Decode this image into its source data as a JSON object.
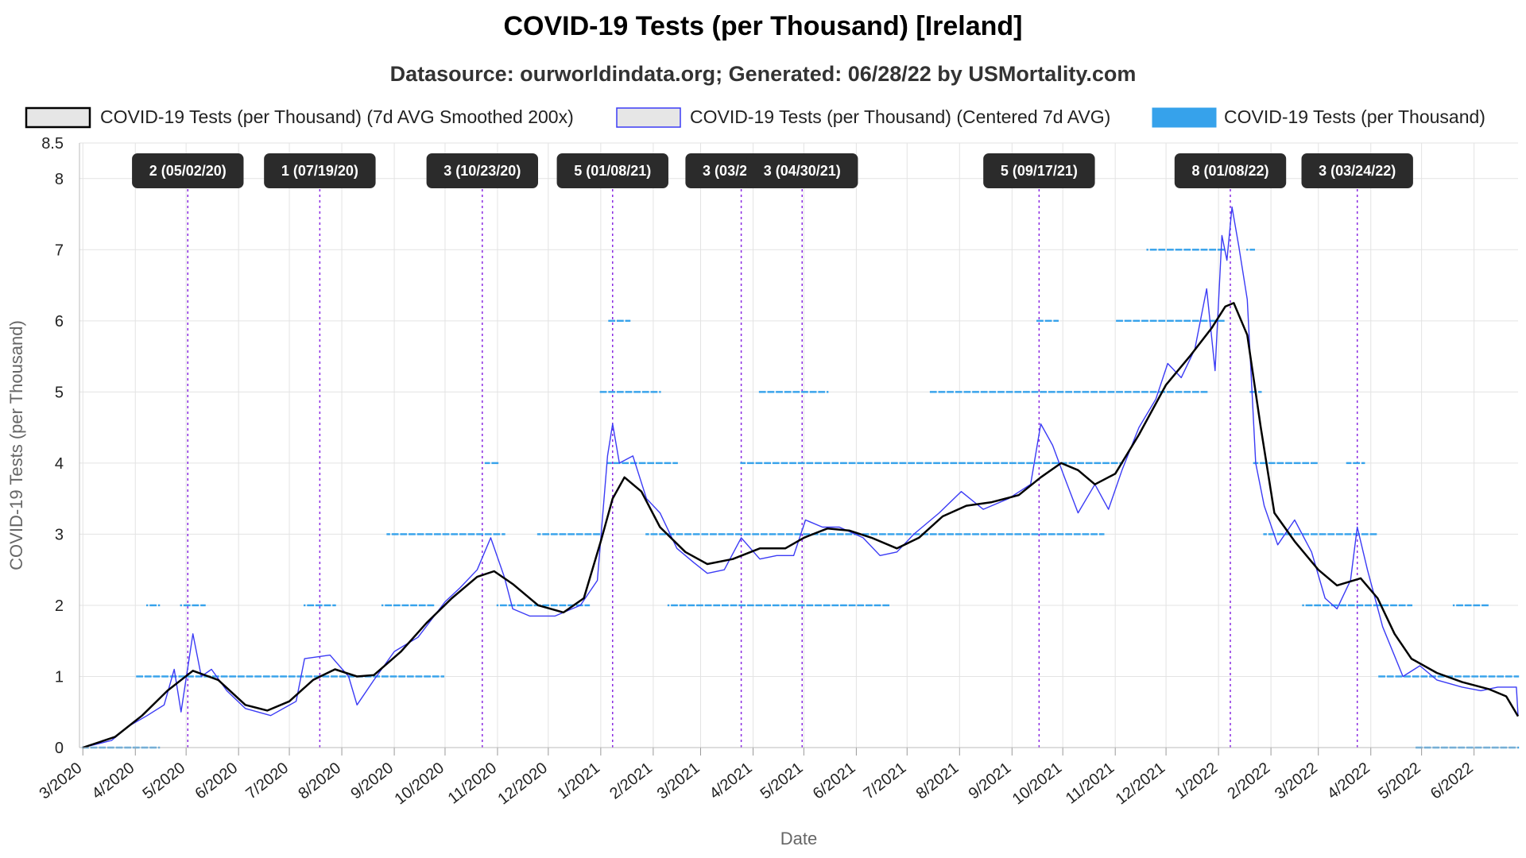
{
  "title": "COVID-19 Tests (per Thousand) [Ireland]",
  "subtitle": "Datasource: ourworldindata.org; Generated: 06/28/22 by USMortality.com",
  "colors": {
    "smoothed_line": "#000000",
    "centered_line": "#3b3bf5",
    "daily_points": "#36a2eb",
    "annotation_line": "#8a2be2",
    "annotation_bg": "#2b2b2b"
  },
  "chart_data": {
    "type": "line",
    "xlabel": "Date",
    "ylabel": "COVID-19 Tests (per Thousand)",
    "ylim": [
      0,
      8.5
    ],
    "yticks": [
      0,
      1,
      2,
      3,
      4,
      5,
      6,
      7,
      8,
      8.5
    ],
    "xlim": [
      "2020-02-28",
      "2022-06-27"
    ],
    "x_tick_labels": [
      "3/2020",
      "4/2020",
      "5/2020",
      "6/2020",
      "7/2020",
      "8/2020",
      "9/2020",
      "10/2020",
      "11/2020",
      "12/2020",
      "1/2021",
      "2/2021",
      "3/2021",
      "4/2021",
      "5/2021",
      "6/2021",
      "7/2021",
      "8/2021",
      "9/2021",
      "10/2021",
      "11/2021",
      "12/2021",
      "1/2022",
      "2/2022",
      "3/2022",
      "4/2022",
      "5/2022",
      "6/2022"
    ],
    "grid": true,
    "legend_position": "top",
    "legend": [
      "COVID-19 Tests (per Thousand) (7d AVG Smoothed 200x)",
      "COVID-19 Tests (per Thousand) (Centered 7d AVG)",
      "COVID-19 Tests (per Thousand)"
    ],
    "series": [
      {
        "name": "COVID-19 Tests (per Thousand) (7d AVG Smoothed 200x)",
        "style": "line",
        "points": [
          [
            "2020-03-01",
            0.0
          ],
          [
            "2020-03-20",
            0.15
          ],
          [
            "2020-04-05",
            0.45
          ],
          [
            "2020-04-20",
            0.8
          ],
          [
            "2020-05-05",
            1.08
          ],
          [
            "2020-05-20",
            0.95
          ],
          [
            "2020-06-05",
            0.6
          ],
          [
            "2020-06-18",
            0.52
          ],
          [
            "2020-07-01",
            0.65
          ],
          [
            "2020-07-15",
            0.95
          ],
          [
            "2020-07-28",
            1.1
          ],
          [
            "2020-08-10",
            1.0
          ],
          [
            "2020-08-20",
            1.02
          ],
          [
            "2020-09-05",
            1.35
          ],
          [
            "2020-09-20",
            1.75
          ],
          [
            "2020-10-05",
            2.1
          ],
          [
            "2020-10-20",
            2.4
          ],
          [
            "2020-10-30",
            2.48
          ],
          [
            "2020-11-10",
            2.3
          ],
          [
            "2020-11-25",
            2.0
          ],
          [
            "2020-12-10",
            1.9
          ],
          [
            "2020-12-22",
            2.1
          ],
          [
            "2021-01-01",
            2.9
          ],
          [
            "2021-01-08",
            3.5
          ],
          [
            "2021-01-15",
            3.8
          ],
          [
            "2021-01-25",
            3.6
          ],
          [
            "2021-02-05",
            3.1
          ],
          [
            "2021-02-20",
            2.75
          ],
          [
            "2021-03-05",
            2.58
          ],
          [
            "2021-03-20",
            2.65
          ],
          [
            "2021-04-05",
            2.8
          ],
          [
            "2021-04-20",
            2.8
          ],
          [
            "2021-05-01",
            2.95
          ],
          [
            "2021-05-15",
            3.08
          ],
          [
            "2021-05-28",
            3.05
          ],
          [
            "2021-06-10",
            2.95
          ],
          [
            "2021-06-25",
            2.8
          ],
          [
            "2021-07-08",
            2.95
          ],
          [
            "2021-07-22",
            3.25
          ],
          [
            "2021-08-05",
            3.4
          ],
          [
            "2021-08-20",
            3.45
          ],
          [
            "2021-09-05",
            3.55
          ],
          [
            "2021-09-18",
            3.8
          ],
          [
            "2021-09-30",
            4.0
          ],
          [
            "2021-10-10",
            3.9
          ],
          [
            "2021-10-20",
            3.7
          ],
          [
            "2021-11-01",
            3.85
          ],
          [
            "2021-11-15",
            4.4
          ],
          [
            "2021-12-01",
            5.1
          ],
          [
            "2021-12-15",
            5.5
          ],
          [
            "2021-12-28",
            5.9
          ],
          [
            "2022-01-05",
            6.2
          ],
          [
            "2022-01-10",
            6.25
          ],
          [
            "2022-01-18",
            5.8
          ],
          [
            "2022-01-26",
            4.5
          ],
          [
            "2022-02-03",
            3.3
          ],
          [
            "2022-02-15",
            2.9
          ],
          [
            "2022-03-01",
            2.5
          ],
          [
            "2022-03-12",
            2.28
          ],
          [
            "2022-03-26",
            2.38
          ],
          [
            "2022-04-05",
            2.1
          ],
          [
            "2022-04-15",
            1.6
          ],
          [
            "2022-04-25",
            1.25
          ],
          [
            "2022-05-10",
            1.05
          ],
          [
            "2022-05-25",
            0.92
          ],
          [
            "2022-06-10",
            0.82
          ],
          [
            "2022-06-20",
            0.72
          ],
          [
            "2022-06-27",
            0.44
          ]
        ]
      },
      {
        "name": "COVID-19 Tests (per Thousand) (Centered 7d AVG)",
        "style": "line",
        "points": [
          [
            "2020-03-01",
            0.0
          ],
          [
            "2020-03-18",
            0.1
          ],
          [
            "2020-03-28",
            0.3
          ],
          [
            "2020-04-08",
            0.45
          ],
          [
            "2020-04-18",
            0.6
          ],
          [
            "2020-04-24",
            1.1
          ],
          [
            "2020-04-28",
            0.5
          ],
          [
            "2020-05-05",
            1.6
          ],
          [
            "2020-05-10",
            1.0
          ],
          [
            "2020-05-16",
            1.1
          ],
          [
            "2020-05-25",
            0.8
          ],
          [
            "2020-06-05",
            0.55
          ],
          [
            "2020-06-20",
            0.45
          ],
          [
            "2020-07-05",
            0.65
          ],
          [
            "2020-07-10",
            1.25
          ],
          [
            "2020-07-25",
            1.3
          ],
          [
            "2020-08-05",
            1.0
          ],
          [
            "2020-08-10",
            0.6
          ],
          [
            "2020-08-20",
            0.95
          ],
          [
            "2020-09-01",
            1.35
          ],
          [
            "2020-09-15",
            1.55
          ],
          [
            "2020-10-01",
            2.05
          ],
          [
            "2020-10-10",
            2.25
          ],
          [
            "2020-10-20",
            2.5
          ],
          [
            "2020-10-28",
            2.95
          ],
          [
            "2020-11-05",
            2.4
          ],
          [
            "2020-11-10",
            1.95
          ],
          [
            "2020-11-20",
            1.85
          ],
          [
            "2020-12-05",
            1.85
          ],
          [
            "2020-12-20",
            2.0
          ],
          [
            "2020-12-30",
            2.35
          ],
          [
            "2021-01-05",
            4.1
          ],
          [
            "2021-01-08",
            4.55
          ],
          [
            "2021-01-12",
            4.0
          ],
          [
            "2021-01-20",
            4.1
          ],
          [
            "2021-01-28",
            3.5
          ],
          [
            "2021-02-05",
            3.3
          ],
          [
            "2021-02-15",
            2.8
          ],
          [
            "2021-02-25",
            2.6
          ],
          [
            "2021-03-05",
            2.45
          ],
          [
            "2021-03-15",
            2.5
          ],
          [
            "2021-03-25",
            2.95
          ],
          [
            "2021-04-05",
            2.65
          ],
          [
            "2021-04-15",
            2.7
          ],
          [
            "2021-04-25",
            2.7
          ],
          [
            "2021-05-02",
            3.2
          ],
          [
            "2021-05-12",
            3.1
          ],
          [
            "2021-05-22",
            3.1
          ],
          [
            "2021-06-05",
            2.95
          ],
          [
            "2021-06-15",
            2.7
          ],
          [
            "2021-06-25",
            2.75
          ],
          [
            "2021-07-05",
            3.0
          ],
          [
            "2021-07-20",
            3.3
          ],
          [
            "2021-08-02",
            3.6
          ],
          [
            "2021-08-15",
            3.35
          ],
          [
            "2021-08-30",
            3.5
          ],
          [
            "2021-09-12",
            3.7
          ],
          [
            "2021-09-18",
            4.55
          ],
          [
            "2021-09-25",
            4.25
          ],
          [
            "2021-10-02",
            3.8
          ],
          [
            "2021-10-10",
            3.3
          ],
          [
            "2021-10-20",
            3.7
          ],
          [
            "2021-10-28",
            3.35
          ],
          [
            "2021-11-05",
            3.9
          ],
          [
            "2021-11-15",
            4.5
          ],
          [
            "2021-11-25",
            4.9
          ],
          [
            "2021-12-02",
            5.4
          ],
          [
            "2021-12-10",
            5.2
          ],
          [
            "2021-12-18",
            5.6
          ],
          [
            "2021-12-25",
            6.45
          ],
          [
            "2021-12-30",
            5.3
          ],
          [
            "2022-01-03",
            7.2
          ],
          [
            "2022-01-06",
            6.85
          ],
          [
            "2022-01-09",
            7.6
          ],
          [
            "2022-01-13",
            7.05
          ],
          [
            "2022-01-18",
            6.3
          ],
          [
            "2022-01-23",
            4.0
          ],
          [
            "2022-01-28",
            3.4
          ],
          [
            "2022-02-05",
            2.85
          ],
          [
            "2022-02-15",
            3.2
          ],
          [
            "2022-02-25",
            2.75
          ],
          [
            "2022-03-05",
            2.1
          ],
          [
            "2022-03-12",
            1.95
          ],
          [
            "2022-03-20",
            2.35
          ],
          [
            "2022-03-24",
            3.1
          ],
          [
            "2022-03-30",
            2.5
          ],
          [
            "2022-04-08",
            1.7
          ],
          [
            "2022-04-20",
            1.0
          ],
          [
            "2022-04-30",
            1.15
          ],
          [
            "2022-05-10",
            0.95
          ],
          [
            "2022-05-25",
            0.85
          ],
          [
            "2022-06-05",
            0.8
          ],
          [
            "2022-06-15",
            0.85
          ],
          [
            "2022-06-26",
            0.85
          ],
          [
            "2022-06-27",
            0.45
          ]
        ]
      },
      {
        "name": "COVID-19 Tests (per Thousand)",
        "style": "points",
        "bands": [
          {
            "value": 0,
            "from": "2020-03-01",
            "to": "2020-04-15"
          },
          {
            "value": 1,
            "from": "2020-04-01",
            "to": "2020-09-30"
          },
          {
            "value": 2,
            "from": "2020-04-08",
            "to": "2020-04-15"
          },
          {
            "value": 2,
            "from": "2020-04-28",
            "to": "2020-05-12"
          },
          {
            "value": 2,
            "from": "2020-07-10",
            "to": "2020-07-28"
          },
          {
            "value": 2,
            "from": "2020-08-25",
            "to": "2020-09-25"
          },
          {
            "value": 3,
            "from": "2020-08-28",
            "to": "2020-11-05"
          },
          {
            "value": 2,
            "from": "2020-11-01",
            "to": "2020-12-25"
          },
          {
            "value": 3,
            "from": "2020-11-25",
            "to": "2021-01-02"
          },
          {
            "value": 4,
            "from": "2020-10-25",
            "to": "2020-11-02"
          },
          {
            "value": 6,
            "from": "2021-01-05",
            "to": "2021-01-18"
          },
          {
            "value": 5,
            "from": "2021-01-01",
            "to": "2021-02-05"
          },
          {
            "value": 4,
            "from": "2021-01-05",
            "to": "2021-02-15"
          },
          {
            "value": 3,
            "from": "2021-01-28",
            "to": "2021-10-25"
          },
          {
            "value": 2,
            "from": "2021-02-10",
            "to": "2021-06-20"
          },
          {
            "value": 4,
            "from": "2021-03-25",
            "to": "2021-11-05"
          },
          {
            "value": 5,
            "from": "2021-04-05",
            "to": "2021-05-15"
          },
          {
            "value": 5,
            "from": "2021-07-15",
            "to": "2021-12-25"
          },
          {
            "value": 6,
            "from": "2021-09-15",
            "to": "2021-09-28"
          },
          {
            "value": 6,
            "from": "2021-11-01",
            "to": "2022-01-05"
          },
          {
            "value": 7,
            "from": "2021-11-20",
            "to": "2022-01-05"
          },
          {
            "value": 8,
            "from": "2021-12-28",
            "to": "2022-01-14"
          },
          {
            "value": 7,
            "from": "2022-01-18",
            "to": "2022-01-22"
          },
          {
            "value": 5,
            "from": "2022-01-20",
            "to": "2022-01-26"
          },
          {
            "value": 4,
            "from": "2022-01-22",
            "to": "2022-02-28"
          },
          {
            "value": 3,
            "from": "2022-01-28",
            "to": "2022-04-05"
          },
          {
            "value": 2,
            "from": "2022-02-20",
            "to": "2022-04-25"
          },
          {
            "value": 4,
            "from": "2022-03-18",
            "to": "2022-03-28"
          },
          {
            "value": 1,
            "from": "2022-04-05",
            "to": "2022-06-27"
          },
          {
            "value": 2,
            "from": "2022-05-20",
            "to": "2022-06-10"
          },
          {
            "value": 0,
            "from": "2022-04-28",
            "to": "2022-06-27"
          }
        ]
      }
    ],
    "annotations": [
      {
        "date": "2020-05-02",
        "label": "2 (05/02/20)"
      },
      {
        "date": "2020-07-19",
        "label": "1 (07/19/20)"
      },
      {
        "date": "2020-10-23",
        "label": "3 (10/23/20)"
      },
      {
        "date": "2021-01-08",
        "label": "5 (01/08/21)"
      },
      {
        "date": "2021-03-25",
        "label": "3 (03/25/21)"
      },
      {
        "date": "2021-04-30",
        "label": "3 (04/30/21)"
      },
      {
        "date": "2021-09-17",
        "label": "5 (09/17/21)"
      },
      {
        "date": "2022-01-08",
        "label": "8 (01/08/22)"
      },
      {
        "date": "2022-03-24",
        "label": "3 (03/24/22)"
      }
    ]
  }
}
